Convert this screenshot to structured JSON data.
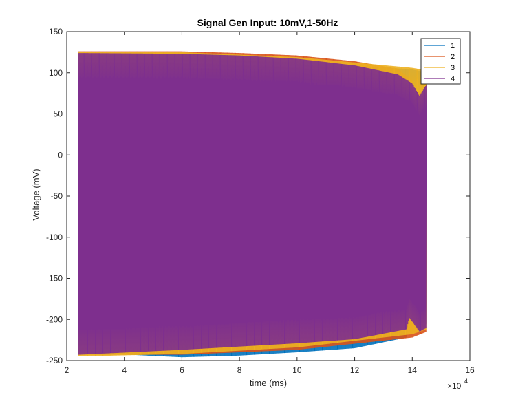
{
  "chart_data": {
    "type": "line",
    "title": "Signal Gen Input: 10mV,1-50Hz",
    "xlabel": "time (ms)",
    "ylabel": "Voltage (mV)",
    "x_exponent_label": "×10",
    "x_exponent_power": "4",
    "xlim": [
      2,
      16
    ],
    "ylim": [
      -250,
      150
    ],
    "xticks": [
      2,
      4,
      6,
      8,
      10,
      12,
      14,
      16
    ],
    "yticks": [
      150,
      100,
      50,
      0,
      -50,
      -100,
      -150,
      -200,
      -250
    ],
    "xtick_labels": [
      "2",
      "4",
      "6",
      "8",
      "10",
      "12",
      "14",
      "16"
    ],
    "ytick_labels": [
      "150",
      "100",
      "50",
      "0",
      "-50",
      "-100",
      "-150",
      "-200",
      "-250"
    ],
    "grid": false,
    "legend_position": "top-right",
    "dense_start_x": 2.35,
    "dense_end_x": 14.55,
    "series": [
      {
        "name": "1",
        "color": "#0072BD",
        "upper": [
          [
            2.4,
            120
          ],
          [
            6,
            119
          ],
          [
            10,
            114
          ],
          [
            14,
            104
          ],
          [
            14.55,
            100
          ]
        ],
        "lower": [
          [
            2.4,
            -240
          ],
          [
            6,
            -246
          ],
          [
            8,
            -244
          ],
          [
            10,
            -240
          ],
          [
            12,
            -235
          ],
          [
            13.8,
            -222
          ],
          [
            13.9,
            -183
          ],
          [
            14.05,
            -200
          ],
          [
            14.25,
            -213
          ],
          [
            14.5,
            -205
          ]
        ]
      },
      {
        "name": "2",
        "color": "#D95319",
        "upper": [
          [
            2.4,
            126
          ],
          [
            6,
            126
          ],
          [
            8,
            124
          ],
          [
            10,
            121
          ],
          [
            12,
            114
          ],
          [
            13.5,
            105
          ],
          [
            14.0,
            90
          ],
          [
            14.25,
            63
          ],
          [
            14.5,
            90
          ]
        ],
        "lower": [
          [
            2.4,
            -243
          ],
          [
            6,
            -243
          ],
          [
            10,
            -237
          ],
          [
            14,
            -222
          ],
          [
            14.5,
            -215
          ]
        ]
      },
      {
        "name": "3",
        "color": "#EDB120",
        "upper": [
          [
            2.4,
            125
          ],
          [
            6,
            125
          ],
          [
            10,
            119
          ],
          [
            14,
            106
          ],
          [
            14.5,
            103
          ]
        ],
        "lower": [
          [
            2.4,
            -245
          ],
          [
            6,
            -242
          ],
          [
            10,
            -234
          ],
          [
            14,
            -218
          ],
          [
            14.5,
            -212
          ]
        ]
      },
      {
        "name": "4",
        "color": "#7E2F8E",
        "upper": [
          [
            2.4,
            124
          ],
          [
            6,
            123
          ],
          [
            8,
            121
          ],
          [
            10,
            117
          ],
          [
            12,
            109
          ],
          [
            13.5,
            98
          ],
          [
            14.0,
            87
          ],
          [
            14.25,
            72
          ],
          [
            14.5,
            86
          ]
        ],
        "lower": [
          [
            2.4,
            -243
          ],
          [
            6,
            -237
          ],
          [
            8,
            -233
          ],
          [
            10,
            -229
          ],
          [
            12,
            -224
          ],
          [
            13.8,
            -212
          ],
          [
            13.9,
            -198
          ],
          [
            14.05,
            -205
          ],
          [
            14.25,
            -215
          ],
          [
            14.5,
            -210
          ]
        ]
      }
    ]
  }
}
